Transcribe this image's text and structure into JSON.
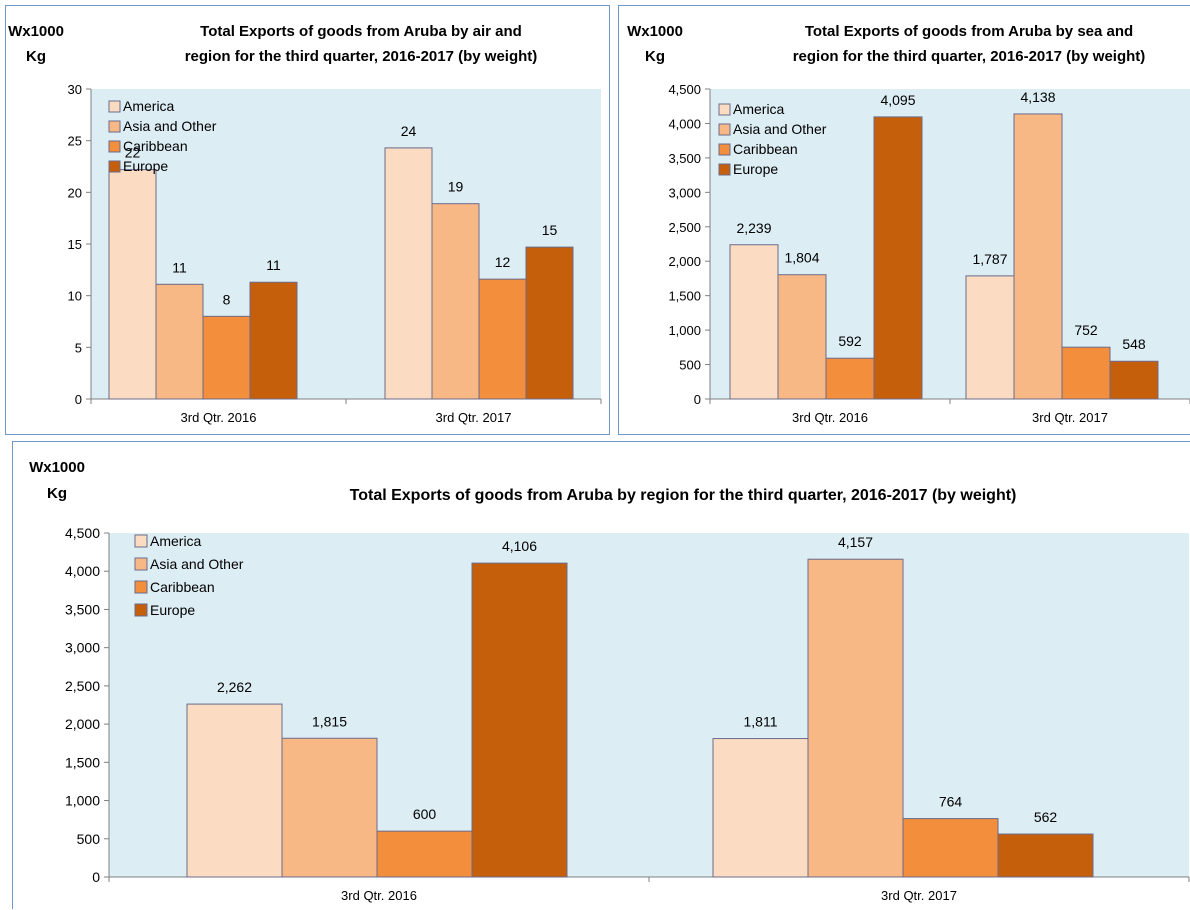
{
  "chart_data": [
    {
      "type": "bar",
      "title": [
        "Total Exports of goods from Aruba by air and",
        "region for the third quarter, 2016-2017 (by weight)"
      ],
      "unit_label": [
        "Wx1000",
        "Kg"
      ],
      "categories": [
        "3rd Qtr. 2016",
        "3rd Qtr. 2017"
      ],
      "series": [
        {
          "name": "America",
          "color": "#fbdcc3",
          "values": [
            22.2,
            24.3
          ],
          "labels": [
            "22",
            "24"
          ]
        },
        {
          "name": "Asia and Other",
          "color": "#f8b885",
          "values": [
            11.1,
            18.9
          ],
          "labels": [
            "11",
            "19"
          ]
        },
        {
          "name": "Caribbean",
          "color": "#f28e3c",
          "values": [
            8.0,
            11.6
          ],
          "labels": [
            "8",
            "12"
          ]
        },
        {
          "name": "Europe",
          "color": "#c55f0b",
          "values": [
            11.3,
            14.7
          ],
          "labels": [
            "11",
            "15"
          ]
        }
      ],
      "ylim": [
        0,
        30
      ],
      "yticks": [
        0,
        5,
        10,
        15,
        20,
        25,
        30
      ],
      "ytick_labels": [
        "0",
        "5",
        "10",
        "15",
        "20",
        "25",
        "30"
      ],
      "legend_position": "top-left",
      "grid": false
    },
    {
      "type": "bar",
      "title": [
        "Total Exports of goods from Aruba by sea and",
        "region for the third quarter, 2016-2017 (by weight)"
      ],
      "unit_label": [
        "Wx1000",
        "Kg"
      ],
      "categories": [
        "3rd Qtr. 2016",
        "3rd Qtr. 2017"
      ],
      "series": [
        {
          "name": "America",
          "color": "#fbdcc3",
          "values": [
            2239,
            1787
          ],
          "labels": [
            "2,239",
            "1,787"
          ]
        },
        {
          "name": "Asia and Other",
          "color": "#f8b885",
          "values": [
            1804,
            4138
          ],
          "labels": [
            "1,804",
            "4,138"
          ]
        },
        {
          "name": "Caribbean",
          "color": "#f28e3c",
          "values": [
            592,
            752
          ],
          "labels": [
            "592",
            "752"
          ]
        },
        {
          "name": "Europe",
          "color": "#c55f0b",
          "values": [
            4095,
            548
          ],
          "labels": [
            "4,095",
            "548"
          ]
        }
      ],
      "ylim": [
        0,
        4500
      ],
      "yticks": [
        0,
        500,
        1000,
        1500,
        2000,
        2500,
        3000,
        3500,
        4000,
        4500
      ],
      "ytick_labels": [
        "0",
        "500",
        "1,000",
        "1,500",
        "2,000",
        "2,500",
        "3,000",
        "3,500",
        "4,000",
        "4,500"
      ],
      "legend_position": "top-left",
      "grid": false
    },
    {
      "type": "bar",
      "title": [
        "Total Exports of goods from Aruba  by region for the third quarter, 2016-2017  (by weight)"
      ],
      "unit_label": [
        "Wx1000",
        "Kg"
      ],
      "categories": [
        "3rd Qtr. 2016",
        "3rd Qtr. 2017"
      ],
      "series": [
        {
          "name": "America",
          "color": "#fbdcc3",
          "values": [
            2262,
            1811
          ],
          "labels": [
            "2,262",
            "1,811"
          ]
        },
        {
          "name": "Asia and Other",
          "color": "#f8b885",
          "values": [
            1815,
            4157
          ],
          "labels": [
            "1,815",
            "4,157"
          ]
        },
        {
          "name": "Caribbean",
          "color": "#f28e3c",
          "values": [
            600,
            764
          ],
          "labels": [
            "600",
            "764"
          ]
        },
        {
          "name": "Europe",
          "color": "#c55f0b",
          "values": [
            4106,
            562
          ],
          "labels": [
            "4,106",
            "562"
          ]
        }
      ],
      "ylim": [
        0,
        4500
      ],
      "yticks": [
        0,
        500,
        1000,
        1500,
        2000,
        2500,
        3000,
        3500,
        4000,
        4500
      ],
      "ytick_labels": [
        "0",
        "500",
        "1,000",
        "1,500",
        "2,000",
        "2,500",
        "3,000",
        "3,500",
        "4,000",
        "4,500"
      ],
      "legend_position": "top-left",
      "grid": false
    }
  ],
  "style": {
    "plot_background": "#dcedf4",
    "bar_outline": "#6b6b8a",
    "panel_border": "#6f98c8"
  }
}
